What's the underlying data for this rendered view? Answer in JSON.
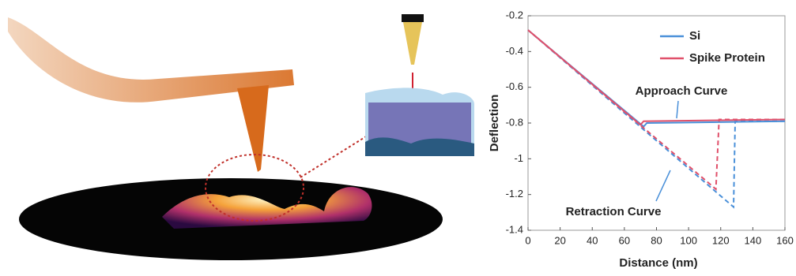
{
  "chart_data": {
    "type": "line",
    "xlabel": "Distance (nm)",
    "ylabel": "Deflection",
    "xlim": [
      0,
      160
    ],
    "xticks": [
      0,
      20,
      40,
      60,
      80,
      100,
      120,
      140,
      160
    ],
    "ylim": [
      -1.4,
      -0.2
    ],
    "yticks": [
      -0.2,
      -0.4,
      -0.6,
      -0.8,
      -1,
      -1.2,
      -1.4
    ],
    "legend": "top-right",
    "annotations": [
      "Approach Curve",
      "Retraction Curve"
    ],
    "series": [
      {
        "name": "Si",
        "color": "#4a90d9",
        "approach": {
          "x": [
            0,
            72,
            74,
            160
          ],
          "values": [
            -0.28,
            -0.82,
            -0.8,
            -0.79
          ]
        },
        "retraction": {
          "x": [
            160,
            129,
            128,
            0
          ],
          "values": [
            -0.79,
            -0.79,
            -1.27,
            -0.28
          ]
        }
      },
      {
        "name": "Spike Protein",
        "color": "#e0506a",
        "approach": {
          "x": [
            0,
            70,
            72,
            160
          ],
          "values": [
            -0.28,
            -0.81,
            -0.79,
            -0.78
          ]
        },
        "retraction": {
          "x": [
            160,
            119,
            117,
            0
          ],
          "values": [
            -0.78,
            -0.78,
            -1.17,
            -0.28
          ]
        }
      }
    ]
  }
}
